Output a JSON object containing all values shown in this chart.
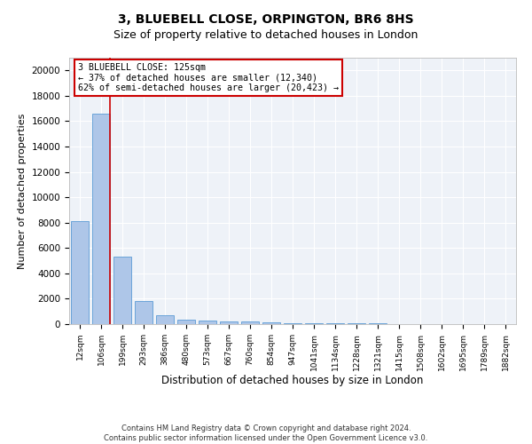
{
  "title1": "3, BLUEBELL CLOSE, ORPINGTON, BR6 8HS",
  "title2": "Size of property relative to detached houses in London",
  "xlabel": "Distribution of detached houses by size in London",
  "ylabel": "Number of detached properties",
  "annotation_title": "3 BLUEBELL CLOSE: 125sqm",
  "annotation_line1": "← 37% of detached houses are smaller (12,340)",
  "annotation_line2": "62% of semi-detached houses are larger (20,423) →",
  "footer1": "Contains HM Land Registry data © Crown copyright and database right 2024.",
  "footer2": "Contains public sector information licensed under the Open Government Licence v3.0.",
  "bar_color": "#aec6e8",
  "bar_edge_color": "#5b9bd5",
  "vline_color": "#cc0000",
  "vline_x": 1.42,
  "categories": [
    "12sqm",
    "106sqm",
    "199sqm",
    "293sqm",
    "386sqm",
    "480sqm",
    "573sqm",
    "667sqm",
    "760sqm",
    "854sqm",
    "947sqm",
    "1041sqm",
    "1134sqm",
    "1228sqm",
    "1321sqm",
    "1415sqm",
    "1508sqm",
    "1602sqm",
    "1695sqm",
    "1789sqm",
    "1882sqm"
  ],
  "values": [
    8100,
    16600,
    5300,
    1800,
    700,
    370,
    270,
    220,
    180,
    130,
    100,
    80,
    65,
    55,
    45,
    35,
    28,
    22,
    18,
    13,
    10
  ],
  "ylim": [
    0,
    21000
  ],
  "yticks": [
    0,
    2000,
    4000,
    6000,
    8000,
    10000,
    12000,
    14000,
    16000,
    18000,
    20000
  ],
  "background_color": "#eef2f8"
}
